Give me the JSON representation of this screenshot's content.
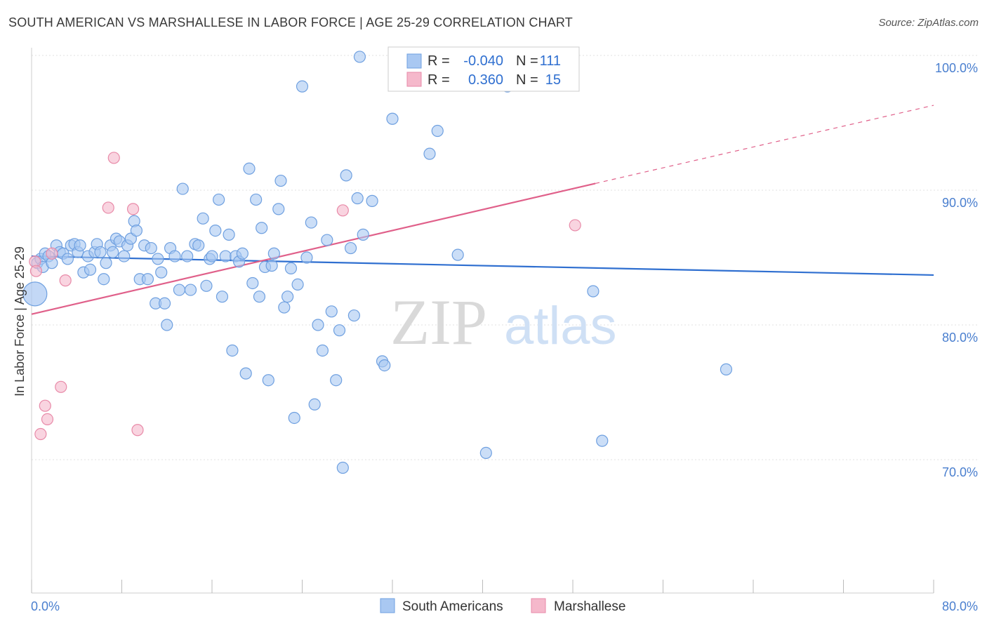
{
  "title": "SOUTH AMERICAN VS MARSHALLESE IN LABOR FORCE | AGE 25-29 CORRELATION CHART",
  "source": "Source: ZipAtlas.com",
  "watermark": {
    "zip": "ZIP",
    "atlas": "atlas"
  },
  "legend_box": {
    "rows": [
      {
        "r_label": "R =",
        "r_value": "-0.040",
        "n_label": "N =",
        "n_value": "111",
        "color": "#a9c8f2"
      },
      {
        "r_label": "R =",
        "r_value": "0.360",
        "n_label": "N =",
        "n_value": "15",
        "color": "#f5b8cb"
      }
    ]
  },
  "chart_data": {
    "type": "scatter",
    "title": "SOUTH AMERICAN VS MARSHALLESE IN LABOR FORCE | AGE 25-29 CORRELATION CHART",
    "xlabel": "",
    "ylabel": "In Labor Force | Age 25-29",
    "xlim": [
      0,
      80
    ],
    "ylim": [
      60,
      102
    ],
    "x_tick_labels": [
      "0.0%",
      "80.0%"
    ],
    "y_ticks": [
      70,
      80,
      90,
      100
    ],
    "y_tick_labels": [
      "70.0%",
      "80.0%",
      "90.0%",
      "100.0%"
    ],
    "grid": true,
    "legend_position": "bottom",
    "series": [
      {
        "name": "South Americans",
        "color": "#a9c8f2",
        "stroke": "#6fa0e0",
        "trend": {
          "x": [
            0,
            80
          ],
          "y": [
            85.1,
            83.7
          ],
          "color": "#2f6fd0"
        },
        "points": [
          [
            0.3,
            82.3
          ],
          [
            0.5,
            84.6
          ],
          [
            0.8,
            84.9
          ],
          [
            1.0,
            84.3
          ],
          [
            1.2,
            85.3
          ],
          [
            1.5,
            85.1
          ],
          [
            1.8,
            84.6
          ],
          [
            2.2,
            85.9
          ],
          [
            2.5,
            85.4
          ],
          [
            2.8,
            85.3
          ],
          [
            3.2,
            84.9
          ],
          [
            3.5,
            85.9
          ],
          [
            3.8,
            86.0
          ],
          [
            4.1,
            85.4
          ],
          [
            4.3,
            85.9
          ],
          [
            4.6,
            83.9
          ],
          [
            5.0,
            85.1
          ],
          [
            5.2,
            84.1
          ],
          [
            5.6,
            85.4
          ],
          [
            5.8,
            86.0
          ],
          [
            6.1,
            85.4
          ],
          [
            6.4,
            83.4
          ],
          [
            6.6,
            84.6
          ],
          [
            7.0,
            85.9
          ],
          [
            7.2,
            85.4
          ],
          [
            7.5,
            86.4
          ],
          [
            7.8,
            86.2
          ],
          [
            8.2,
            85.1
          ],
          [
            8.5,
            85.9
          ],
          [
            8.8,
            86.4
          ],
          [
            9.1,
            87.7
          ],
          [
            9.3,
            87.0
          ],
          [
            9.6,
            83.4
          ],
          [
            10.0,
            85.9
          ],
          [
            10.3,
            83.4
          ],
          [
            10.6,
            85.7
          ],
          [
            11.0,
            81.6
          ],
          [
            11.2,
            84.9
          ],
          [
            11.5,
            83.9
          ],
          [
            11.8,
            81.6
          ],
          [
            12.0,
            80.0
          ],
          [
            12.3,
            85.7
          ],
          [
            12.7,
            85.1
          ],
          [
            13.1,
            82.6
          ],
          [
            13.4,
            90.1
          ],
          [
            13.8,
            85.1
          ],
          [
            14.1,
            82.6
          ],
          [
            14.5,
            86.0
          ],
          [
            14.8,
            85.9
          ],
          [
            15.2,
            87.9
          ],
          [
            15.5,
            82.9
          ],
          [
            15.8,
            84.9
          ],
          [
            16.0,
            85.1
          ],
          [
            16.3,
            87.0
          ],
          [
            16.6,
            89.3
          ],
          [
            16.9,
            82.1
          ],
          [
            17.2,
            85.1
          ],
          [
            17.5,
            86.7
          ],
          [
            17.8,
            78.1
          ],
          [
            18.1,
            85.1
          ],
          [
            18.4,
            84.7
          ],
          [
            18.7,
            85.3
          ],
          [
            19.0,
            76.4
          ],
          [
            19.3,
            91.6
          ],
          [
            19.6,
            83.1
          ],
          [
            19.9,
            89.3
          ],
          [
            20.2,
            82.1
          ],
          [
            20.4,
            87.2
          ],
          [
            20.7,
            84.3
          ],
          [
            21.0,
            75.9
          ],
          [
            21.3,
            84.4
          ],
          [
            21.5,
            85.3
          ],
          [
            21.9,
            88.6
          ],
          [
            22.1,
            90.7
          ],
          [
            22.4,
            81.3
          ],
          [
            22.7,
            82.1
          ],
          [
            23.0,
            84.2
          ],
          [
            23.3,
            73.1
          ],
          [
            23.6,
            83.0
          ],
          [
            24.0,
            97.7
          ],
          [
            24.4,
            85.0
          ],
          [
            24.8,
            87.6
          ],
          [
            25.1,
            74.1
          ],
          [
            25.4,
            80.0
          ],
          [
            25.8,
            78.1
          ],
          [
            26.2,
            86.3
          ],
          [
            26.6,
            81.0
          ],
          [
            27.0,
            75.9
          ],
          [
            27.3,
            79.6
          ],
          [
            27.6,
            69.4
          ],
          [
            27.9,
            91.1
          ],
          [
            28.3,
            85.7
          ],
          [
            28.6,
            80.7
          ],
          [
            28.9,
            89.4
          ],
          [
            29.1,
            99.9
          ],
          [
            29.4,
            86.7
          ],
          [
            30.2,
            89.2
          ],
          [
            31.1,
            77.3
          ],
          [
            31.3,
            77.0
          ],
          [
            32.0,
            95.3
          ],
          [
            33.2,
            100.0
          ],
          [
            35.3,
            92.7
          ],
          [
            36.0,
            94.4
          ],
          [
            37.8,
            85.2
          ],
          [
            38.8,
            99.9
          ],
          [
            40.3,
            70.5
          ],
          [
            42.2,
            97.7
          ],
          [
            49.8,
            82.5
          ],
          [
            50.6,
            71.4
          ],
          [
            61.6,
            76.7
          ]
        ]
      },
      {
        "name": "Marshallese",
        "color": "#f5b8cb",
        "stroke": "#e88aa8",
        "trend": {
          "x": [
            0,
            50
          ],
          "y": [
            80.8,
            90.5
          ],
          "dashed_to": [
            80,
            96.3
          ],
          "color": "#e0608a"
        },
        "points": [
          [
            0.3,
            84.7
          ],
          [
            0.4,
            84.0
          ],
          [
            0.8,
            71.9
          ],
          [
            1.2,
            74.0
          ],
          [
            1.4,
            73.0
          ],
          [
            1.8,
            85.3
          ],
          [
            2.6,
            75.4
          ],
          [
            3.0,
            83.3
          ],
          [
            6.8,
            88.7
          ],
          [
            7.3,
            92.4
          ],
          [
            9.0,
            88.6
          ],
          [
            9.4,
            72.2
          ],
          [
            27.6,
            88.5
          ],
          [
            48.2,
            87.4
          ]
        ]
      }
    ]
  }
}
